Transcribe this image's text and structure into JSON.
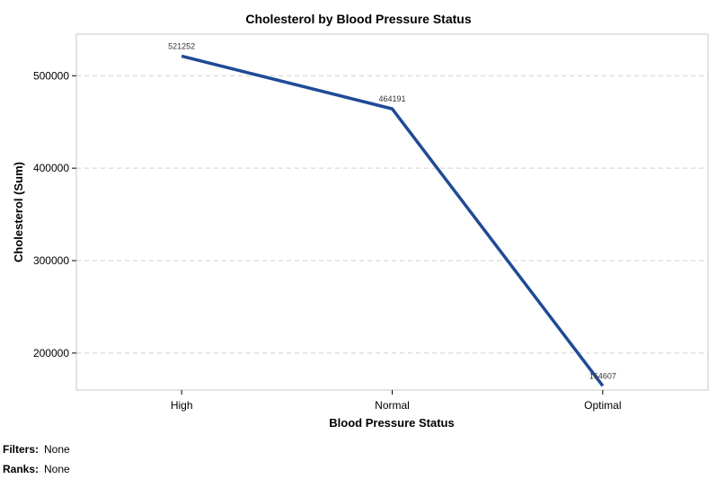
{
  "chart_data": {
    "type": "line",
    "title": "Cholesterol by Blood Pressure Status",
    "xlabel": "Blood Pressure Status",
    "ylabel": "Cholesterol (Sum)",
    "categories": [
      "High",
      "Normal",
      "Optimal"
    ],
    "series": [
      {
        "values": [
          521252,
          464191,
          164607
        ],
        "color": "#1f4a96"
      }
    ],
    "data_labels": [
      "521252",
      "464191",
      "164607"
    ],
    "y_ticks": [
      200000,
      300000,
      400000,
      500000
    ],
    "y_tick_labels": [
      "200000",
      "300000",
      "400000",
      "500000"
    ],
    "ylim": [
      160000,
      545000
    ],
    "grid": "horizontal-dashed",
    "legend": "none"
  },
  "footer": {
    "filters_key": "Filters:",
    "filters_value": "None",
    "ranks_key": "Ranks:",
    "ranks_value": "None"
  }
}
